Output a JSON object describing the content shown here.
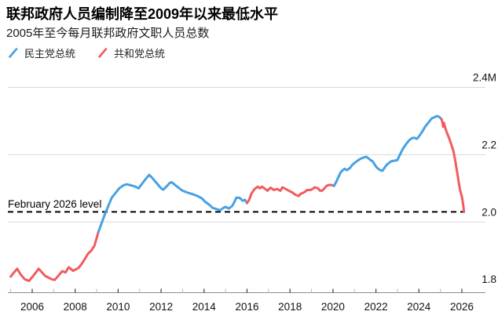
{
  "header": {
    "title": "联邦政府人员编制降至2009年以来最低水平",
    "subtitle": "2005年至今每月联邦政府文职人员总数"
  },
  "legend": [
    {
      "label": "民主党总统",
      "party": "democrat"
    },
    {
      "label": "共和党总统",
      "party": "republican"
    }
  ],
  "colors": {
    "democrat": "#47A1E3",
    "republican": "#F25B5E",
    "grid": "#d9d9d9",
    "axis": "#8c8c8c",
    "tick_major": "#3c3c3c",
    "tick_minor": "#bcbcbc",
    "text": "#111111",
    "reference": "#000000"
  },
  "annotation": {
    "label": "February 2026 level",
    "value": 2.03
  },
  "chart_data": {
    "type": "line",
    "title": "联邦政府人员编制降至2009年以来最低水平",
    "subtitle": "2005年至今每月联邦政府文职人员总数",
    "xlabel": "",
    "ylabel": "",
    "unit": "millions of employees",
    "xlim": [
      2004.85,
      2026.35
    ],
    "ylim": [
      1.8,
      2.4
    ],
    "grid": "horizontal",
    "legend_position": "top-left",
    "y_ticks": [
      {
        "label": "2.4M",
        "value": 2.4,
        "gridline": true
      },
      {
        "label": "2.2",
        "value": 2.2,
        "gridline": true
      },
      {
        "label": "2.0",
        "value": 2.0,
        "gridline": true
      },
      {
        "label": "1.8",
        "value": 1.8,
        "gridline": false
      }
    ],
    "x_ticks_major": [
      2006,
      2008,
      2010,
      2012,
      2014,
      2016,
      2018,
      2020,
      2022,
      2024,
      2026
    ],
    "x_ticks_minor": [
      2005,
      2007,
      2009,
      2011,
      2013,
      2015,
      2017,
      2019,
      2021,
      2023,
      2025
    ],
    "reference_line": {
      "label": "February 2026 level",
      "value": 2.03
    },
    "series": [
      {
        "name": "共和党总统",
        "party": "republican",
        "points": [
          [
            2005.0,
            1.838
          ],
          [
            2005.15,
            1.85
          ],
          [
            2005.3,
            1.861
          ],
          [
            2005.45,
            1.845
          ],
          [
            2005.65,
            1.83
          ],
          [
            2005.85,
            1.825
          ],
          [
            2006.05,
            1.84
          ],
          [
            2006.3,
            1.861
          ],
          [
            2006.6,
            1.84
          ],
          [
            2006.9,
            1.83
          ],
          [
            2007.05,
            1.828
          ],
          [
            2007.4,
            1.854
          ],
          [
            2007.55,
            1.85
          ],
          [
            2007.7,
            1.866
          ],
          [
            2007.9,
            1.855
          ],
          [
            2008.15,
            1.863
          ],
          [
            2008.3,
            1.875
          ],
          [
            2008.45,
            1.89
          ],
          [
            2008.6,
            1.906
          ],
          [
            2008.75,
            1.915
          ],
          [
            2008.9,
            1.93
          ],
          [
            2009.08,
            1.97
          ]
        ]
      },
      {
        "name": "民主党总统",
        "party": "democrat",
        "points": [
          [
            2009.08,
            1.97
          ],
          [
            2009.25,
            2.0
          ],
          [
            2009.4,
            2.026
          ],
          [
            2009.55,
            2.049
          ],
          [
            2009.7,
            2.072
          ],
          [
            2009.9,
            2.088
          ],
          [
            2010.05,
            2.1
          ],
          [
            2010.25,
            2.109
          ],
          [
            2010.4,
            2.112
          ],
          [
            2010.6,
            2.109
          ],
          [
            2010.8,
            2.105
          ],
          [
            2010.95,
            2.1
          ],
          [
            2011.15,
            2.117
          ],
          [
            2011.35,
            2.133
          ],
          [
            2011.45,
            2.14
          ],
          [
            2011.6,
            2.13
          ],
          [
            2011.8,
            2.115
          ],
          [
            2012.0,
            2.1
          ],
          [
            2012.1,
            2.096
          ],
          [
            2012.25,
            2.105
          ],
          [
            2012.4,
            2.116
          ],
          [
            2012.5,
            2.118
          ],
          [
            2012.65,
            2.11
          ],
          [
            2012.85,
            2.1
          ],
          [
            2013.0,
            2.093
          ],
          [
            2013.2,
            2.088
          ],
          [
            2013.45,
            2.083
          ],
          [
            2013.7,
            2.077
          ],
          [
            2013.9,
            2.07
          ],
          [
            2014.05,
            2.06
          ],
          [
            2014.25,
            2.051
          ],
          [
            2014.4,
            2.042
          ],
          [
            2014.6,
            2.038
          ],
          [
            2014.75,
            2.035
          ],
          [
            2014.9,
            2.042
          ],
          [
            2015.0,
            2.045
          ],
          [
            2015.15,
            2.04
          ],
          [
            2015.3,
            2.047
          ],
          [
            2015.4,
            2.058
          ],
          [
            2015.5,
            2.072
          ],
          [
            2015.65,
            2.072
          ],
          [
            2015.8,
            2.063
          ],
          [
            2015.9,
            2.066
          ],
          [
            2016.0,
            2.056
          ]
        ]
      },
      {
        "name": "共和党总统",
        "party": "republican",
        "points": [
          [
            2016.0,
            2.056
          ],
          [
            2016.1,
            2.066
          ],
          [
            2016.2,
            2.084
          ],
          [
            2016.35,
            2.098
          ],
          [
            2016.5,
            2.105
          ],
          [
            2016.6,
            2.1
          ],
          [
            2016.7,
            2.105
          ],
          [
            2016.85,
            2.098
          ],
          [
            2016.95,
            2.093
          ],
          [
            2017.1,
            2.102
          ],
          [
            2017.25,
            2.095
          ],
          [
            2017.4,
            2.098
          ],
          [
            2017.55,
            2.093
          ],
          [
            2017.65,
            2.103
          ],
          [
            2017.8,
            2.098
          ],
          [
            2017.95,
            2.093
          ],
          [
            2018.1,
            2.088
          ],
          [
            2018.25,
            2.081
          ],
          [
            2018.4,
            2.077
          ],
          [
            2018.5,
            2.084
          ],
          [
            2018.65,
            2.088
          ],
          [
            2018.8,
            2.095
          ],
          [
            2018.95,
            2.095
          ],
          [
            2019.05,
            2.098
          ],
          [
            2019.15,
            2.103
          ],
          [
            2019.3,
            2.1
          ],
          [
            2019.4,
            2.093
          ],
          [
            2019.5,
            2.093
          ],
          [
            2019.6,
            2.1
          ],
          [
            2019.7,
            2.107
          ],
          [
            2019.8,
            2.11
          ],
          [
            2019.95,
            2.11
          ],
          [
            2020.05,
            2.107
          ]
        ]
      },
      {
        "name": "民主党总统",
        "party": "democrat",
        "points": [
          [
            2020.05,
            2.107
          ],
          [
            2020.15,
            2.119
          ],
          [
            2020.25,
            2.133
          ],
          [
            2020.35,
            2.147
          ],
          [
            2020.45,
            2.154
          ],
          [
            2020.55,
            2.158
          ],
          [
            2020.65,
            2.154
          ],
          [
            2020.8,
            2.161
          ],
          [
            2020.9,
            2.17
          ],
          [
            2021.0,
            2.175
          ],
          [
            2021.1,
            2.18
          ],
          [
            2021.25,
            2.187
          ],
          [
            2021.4,
            2.191
          ],
          [
            2021.55,
            2.194
          ],
          [
            2021.65,
            2.189
          ],
          [
            2021.75,
            2.184
          ],
          [
            2021.85,
            2.18
          ],
          [
            2021.95,
            2.17
          ],
          [
            2022.05,
            2.161
          ],
          [
            2022.2,
            2.154
          ],
          [
            2022.3,
            2.152
          ],
          [
            2022.4,
            2.161
          ],
          [
            2022.5,
            2.17
          ],
          [
            2022.6,
            2.175
          ],
          [
            2022.7,
            2.18
          ],
          [
            2022.85,
            2.182
          ],
          [
            2023.0,
            2.184
          ],
          [
            2023.1,
            2.198
          ],
          [
            2023.25,
            2.217
          ],
          [
            2023.4,
            2.231
          ],
          [
            2023.55,
            2.243
          ],
          [
            2023.7,
            2.25
          ],
          [
            2023.8,
            2.25
          ],
          [
            2023.9,
            2.247
          ],
          [
            2024.0,
            2.254
          ],
          [
            2024.15,
            2.268
          ],
          [
            2024.3,
            2.284
          ],
          [
            2024.45,
            2.296
          ],
          [
            2024.6,
            2.308
          ],
          [
            2024.75,
            2.312
          ],
          [
            2024.85,
            2.315
          ],
          [
            2024.95,
            2.312
          ],
          [
            2025.05,
            2.306
          ]
        ]
      },
      {
        "name": "共和党总统",
        "party": "republican",
        "points": [
          [
            2025.05,
            2.306
          ],
          [
            2025.1,
            2.295
          ],
          [
            2025.13,
            2.283
          ],
          [
            2025.17,
            2.294
          ],
          [
            2025.22,
            2.28
          ],
          [
            2025.3,
            2.266
          ],
          [
            2025.4,
            2.25
          ],
          [
            2025.5,
            2.232
          ],
          [
            2025.6,
            2.212
          ],
          [
            2025.67,
            2.19
          ],
          [
            2025.72,
            2.172
          ],
          [
            2025.77,
            2.152
          ],
          [
            2025.82,
            2.132
          ],
          [
            2025.87,
            2.112
          ],
          [
            2025.92,
            2.094
          ],
          [
            2025.97,
            2.082
          ],
          [
            2026.0,
            2.076
          ],
          [
            2026.04,
            2.06
          ],
          [
            2026.08,
            2.042
          ],
          [
            2026.1,
            2.03
          ]
        ]
      }
    ]
  }
}
